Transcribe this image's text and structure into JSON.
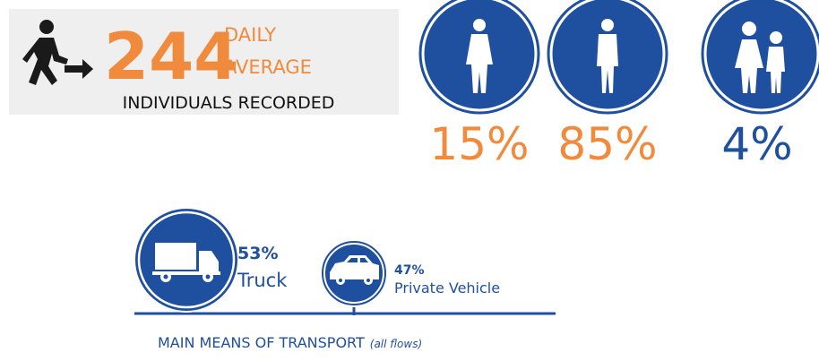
{
  "stat": {
    "number": "244",
    "unit_line1": "DAILY",
    "unit_line2": "AVERAGE",
    "caption": "INDIVIDUALS RECORDED"
  },
  "gender": {
    "items": [
      {
        "label": "15%"
      },
      {
        "label": "85%"
      },
      {
        "label": "4%"
      }
    ]
  },
  "transport": {
    "items": [
      {
        "share": "53%",
        "name": "Truck"
      },
      {
        "share": "47%",
        "name": "Private Vehicle"
      }
    ],
    "caption": "MAIN MEANS OF TRANSPORT",
    "note": "(all flows)"
  }
}
